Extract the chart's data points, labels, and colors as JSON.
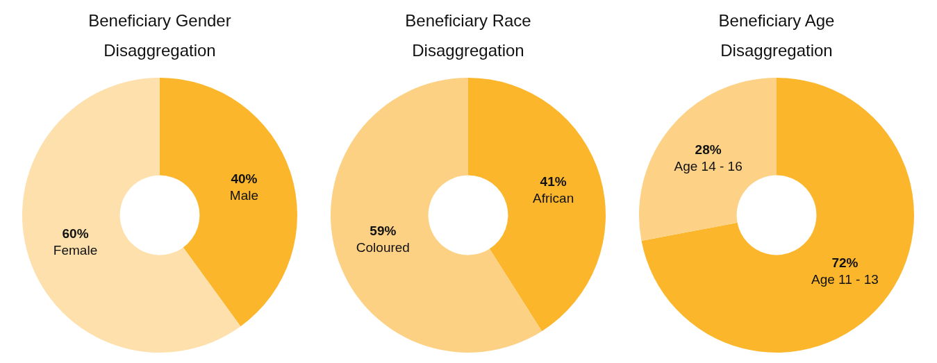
{
  "chart_data": [
    {
      "type": "donut",
      "title": "Beneficiary Gender Disaggregation",
      "categories": [
        "Male",
        "Female"
      ],
      "values": [
        40,
        60
      ],
      "value_labels": [
        "40%",
        "60%"
      ],
      "colors": [
        "#fbb62b",
        "#fde0ab"
      ],
      "legend": false
    },
    {
      "type": "donut",
      "title": "Beneficiary Race Disaggregation",
      "categories": [
        "African",
        "Coloured"
      ],
      "values": [
        41,
        59
      ],
      "value_labels": [
        "41%",
        "59%"
      ],
      "colors": [
        "#fbb62b",
        "#fdd184"
      ],
      "legend": false
    },
    {
      "type": "donut",
      "title": "Beneficiary Age Disaggregation",
      "categories": [
        "Age 11 - 13",
        "Age 14 - 16"
      ],
      "values": [
        72,
        28
      ],
      "value_labels": [
        "72%",
        "28%"
      ],
      "colors": [
        "#fbb62b",
        "#fdd186"
      ],
      "legend": false
    }
  ]
}
